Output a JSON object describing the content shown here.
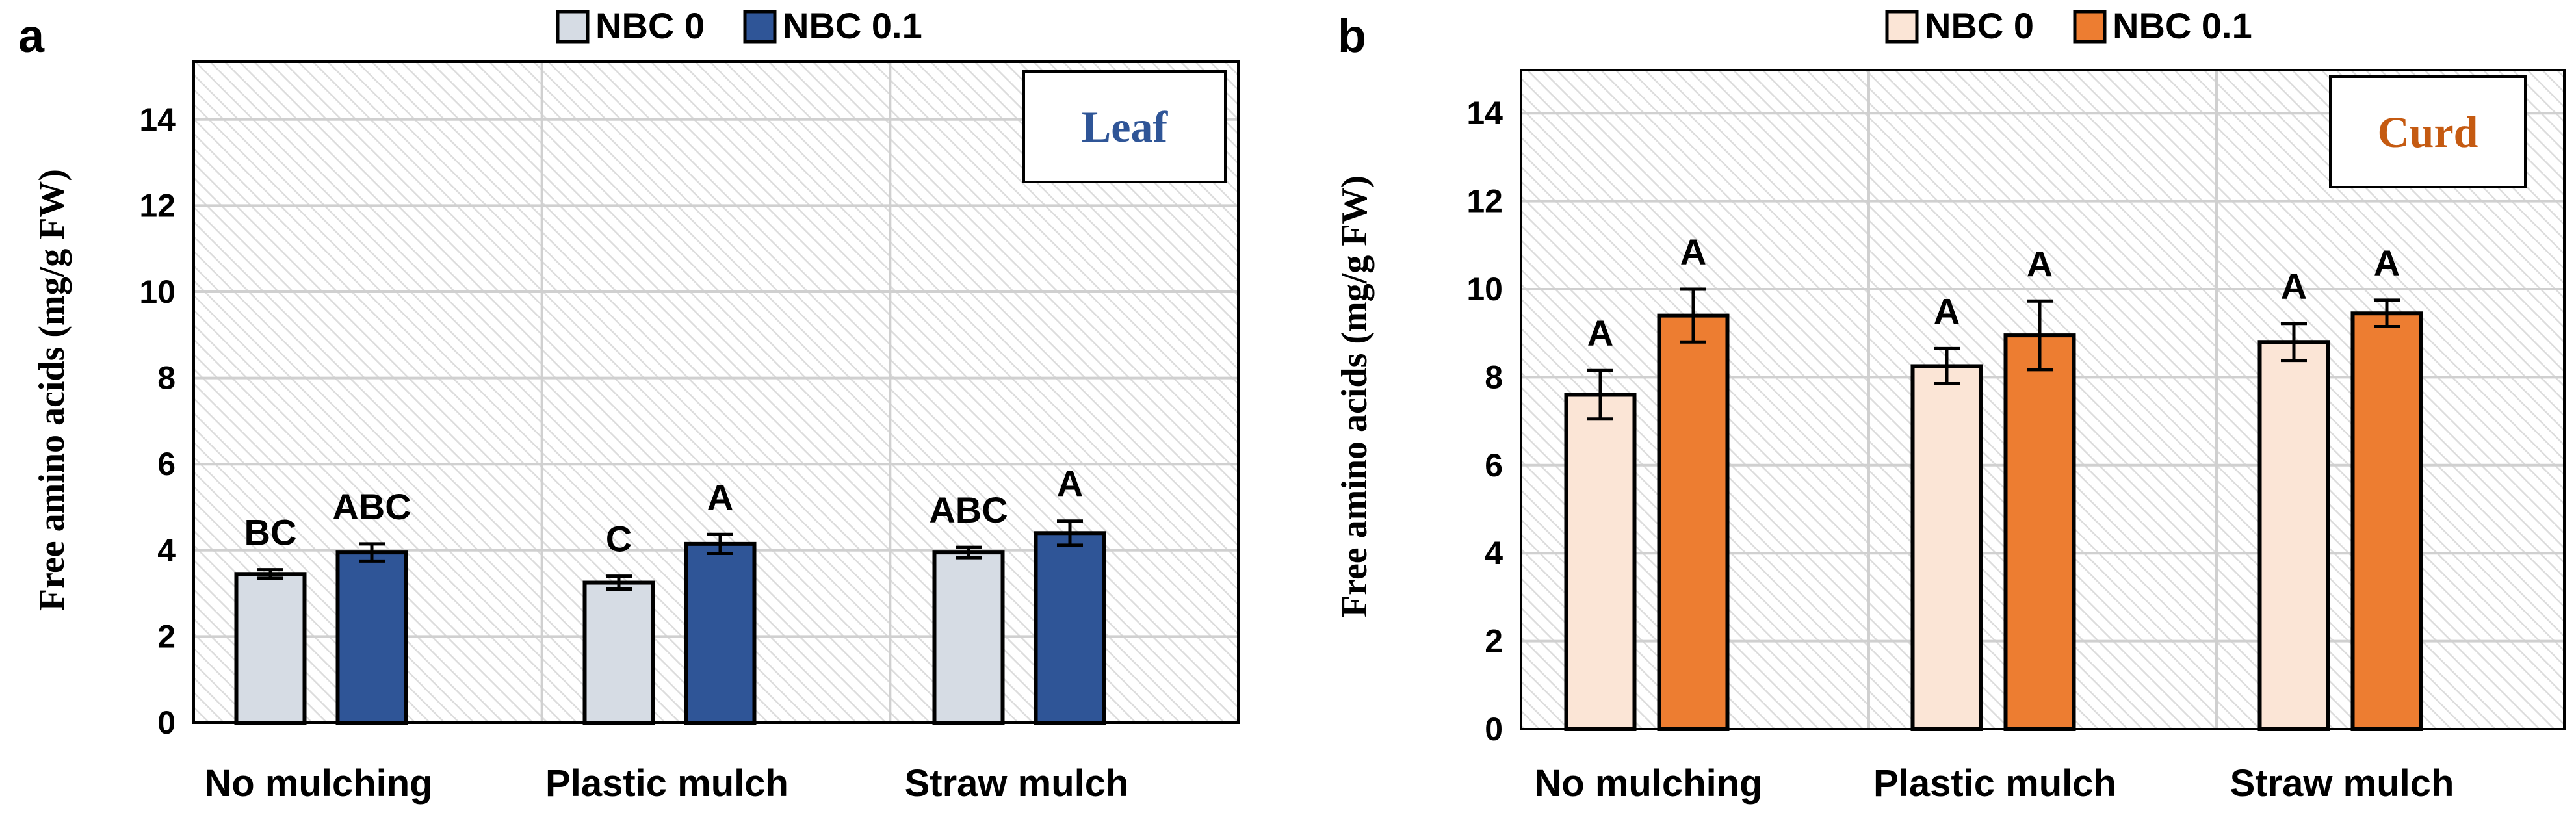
{
  "colors": {
    "leaf_nbc0": "#d6dce4",
    "leaf_nbc01": "#2f5597",
    "curd_nbc0": "#fbe5d6",
    "curd_nbc01": "#ed7d31",
    "leaf_title": "#2f5597",
    "curd_title": "#c55a11"
  },
  "chart_data": [
    {
      "type": "bar",
      "panel_label": "a",
      "title": "Leaf",
      "ylabel": "Free amino acids (mg/g FW)",
      "xlabel": "",
      "ylim": [
        0,
        15
      ],
      "yticks": [
        "0",
        "2",
        "4",
        "6",
        "8",
        "10",
        "12",
        "14"
      ],
      "grid": true,
      "legend_position": "top",
      "categories": [
        "No mulching",
        "Plastic mulch",
        "Straw mulch"
      ],
      "series": [
        {
          "name": "NBC 0",
          "values": [
            3.45,
            3.25,
            3.95
          ],
          "errors": [
            0.1,
            0.15,
            0.12
          ],
          "letters": [
            "BC",
            "C",
            "ABC"
          ]
        },
        {
          "name": "NBC 0.1",
          "values": [
            3.95,
            4.15,
            4.4
          ],
          "errors": [
            0.2,
            0.22,
            0.28
          ],
          "letters": [
            "ABC",
            "A",
            "A"
          ]
        }
      ]
    },
    {
      "type": "bar",
      "panel_label": "b",
      "title": "Curd",
      "ylabel": "Free amino acids (mg/g FW)",
      "xlabel": "",
      "ylim": [
        0,
        15
      ],
      "yticks": [
        "0",
        "2",
        "4",
        "6",
        "8",
        "10",
        "12",
        "14"
      ],
      "grid": true,
      "legend_position": "top",
      "categories": [
        "No mulching",
        "Plastic mulch",
        "Straw mulch"
      ],
      "series": [
        {
          "name": "NBC 0",
          "values": [
            7.6,
            8.25,
            8.8
          ],
          "errors": [
            0.55,
            0.4,
            0.42
          ],
          "letters": [
            "A",
            "A",
            "A"
          ]
        },
        {
          "name": "NBC 0.1",
          "values": [
            9.4,
            8.95,
            9.45
          ],
          "errors": [
            0.6,
            0.78,
            0.3
          ],
          "letters": [
            "A",
            "A",
            "A"
          ]
        }
      ]
    }
  ]
}
